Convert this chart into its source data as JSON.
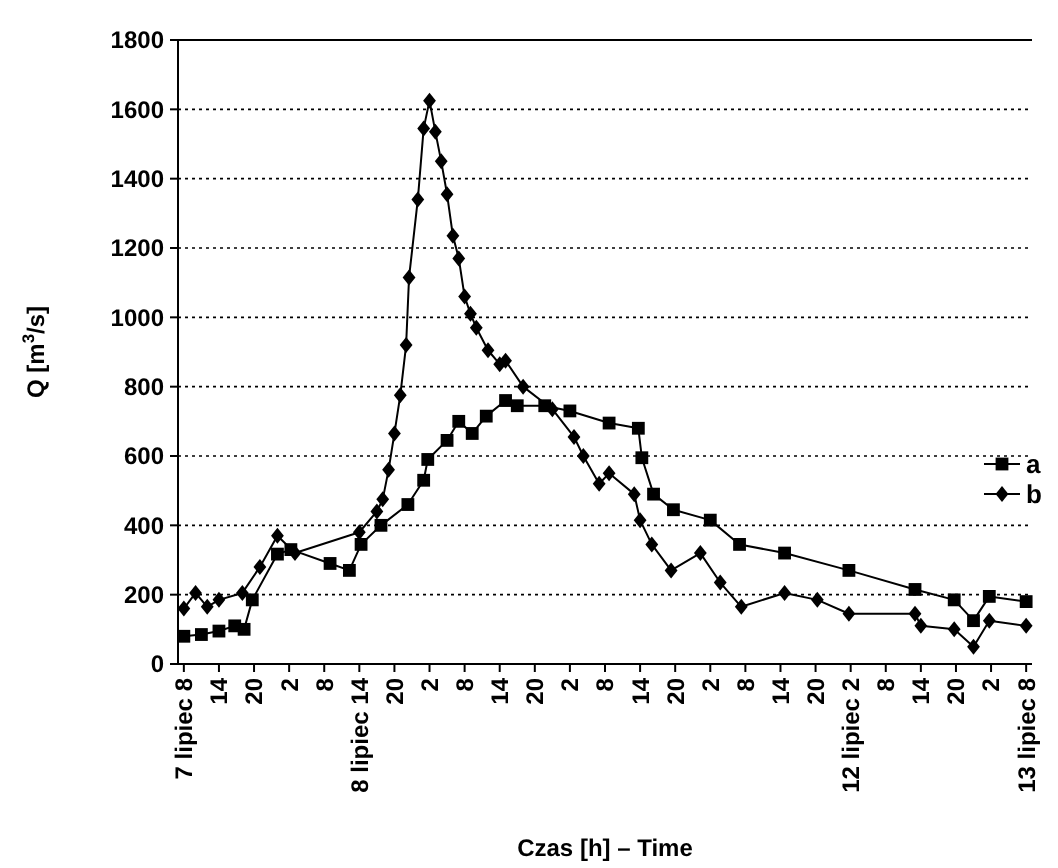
{
  "chart_data": {
    "type": "line",
    "xlabel": "Czas [h] – Time",
    "ylabel": "Q [m$^{3}$/s]",
    "xlim": [
      "--07-07T07:00",
      "--07-13T09:00"
    ],
    "ylim": [
      0,
      1800
    ],
    "yticks": [
      0,
      200,
      400,
      600,
      800,
      1000,
      1200,
      1400,
      1600,
      1800
    ],
    "xticks": [
      {
        "value": "--07-07T08:00",
        "label": "7 lipiec 8"
      },
      {
        "value": "--07-07T14:00",
        "label": "14"
      },
      {
        "value": "--07-07T20:00",
        "label": "20"
      },
      {
        "value": "--07-08T02:00",
        "label": "2"
      },
      {
        "value": "--07-08T08:00",
        "label": "8"
      },
      {
        "value": "--07-08T14:00",
        "label": "8 lipiec 14"
      },
      {
        "value": "--07-08T20:00",
        "label": "20"
      },
      {
        "value": "--07-09T02:00",
        "label": "2"
      },
      {
        "value": "--07-09T08:00",
        "label": "8"
      },
      {
        "value": "--07-09T14:00",
        "label": "14"
      },
      {
        "value": "--07-09T20:00",
        "label": "20"
      },
      {
        "value": "--07-10T02:00",
        "label": "2"
      },
      {
        "value": "--07-10T08:00",
        "label": "8"
      },
      {
        "value": "--07-10T14:00",
        "label": "14"
      },
      {
        "value": "--07-10T20:00",
        "label": "20"
      },
      {
        "value": "--07-11T02:00",
        "label": "2"
      },
      {
        "value": "--07-11T08:00",
        "label": "8"
      },
      {
        "value": "--07-11T14:00",
        "label": "14"
      },
      {
        "value": "--07-11T20:00",
        "label": "20"
      },
      {
        "value": "--07-12T02:00",
        "label": "12 lipiec 2"
      },
      {
        "value": "--07-12T08:00",
        "label": "8"
      },
      {
        "value": "--07-12T14:00",
        "label": "14"
      },
      {
        "value": "--07-12T20:00",
        "label": "20"
      },
      {
        "value": "--07-13T02:00",
        "label": "2"
      },
      {
        "value": "--07-13T08:00",
        "label": "13 lipiec 8"
      }
    ],
    "grid": "y",
    "legend": "right",
    "line_style": "solid",
    "series": [
      {
        "name": "a",
        "color": "#000000",
        "marker": "square",
        "x": [
          "--07-07T08:00",
          "--07-07T11:00",
          "--07-07T14:00",
          "--07-07T16:42",
          "--07-07T18:18",
          "--07-07T19:42",
          "--07-08T00:00",
          "--07-08T02:18",
          "--07-08T09:00",
          "--07-08T12:18",
          "--07-08T14:18",
          "--07-08T17:42",
          "--07-08T22:18",
          "--07-09T01:00",
          "--07-09T01:42",
          "--07-09T05:00",
          "--07-09T07:00",
          "--07-09T09:18",
          "--07-09T11:42",
          "--07-09T15:00",
          "--07-09T17:00",
          "--07-09T21:42",
          "--07-10T02:00",
          "--07-10T08:42",
          "--07-10T13:42",
          "--07-10T14:18",
          "--07-10T16:18",
          "--07-10T19:42",
          "--07-11T02:00",
          "--07-11T07:00",
          "--07-11T14:42",
          "--07-12T01:42",
          "--07-12T13:00",
          "--07-12T19:42",
          "--07-12T23:00",
          "--07-13T01:42",
          "--07-13T08:00"
        ],
        "values": [
          80,
          85,
          95,
          110,
          100,
          185,
          317,
          330,
          290,
          270,
          345,
          400,
          460,
          530,
          590,
          645,
          700,
          665,
          715,
          760,
          745,
          745,
          730,
          695,
          680,
          595,
          490,
          445,
          415,
          345,
          320,
          270,
          215,
          185,
          125,
          195,
          180
        ]
      },
      {
        "name": "b",
        "color": "#000000",
        "marker": "diamond",
        "x": [
          "--07-07T08:00",
          "--07-07T10:00",
          "--07-07T12:00",
          "--07-07T14:00",
          "--07-07T18:00",
          "--07-07T21:00",
          "--07-08T00:00",
          "--07-08T03:00",
          "--07-08T14:00",
          "--07-08T17:00",
          "--07-08T18:00",
          "--07-08T19:00",
          "--07-08T20:00",
          "--07-08T21:00",
          "--07-08T22:00",
          "--07-08T22:30",
          "--07-09T00:00",
          "--07-09T01:00",
          "--07-09T02:00",
          "--07-09T03:00",
          "--07-09T04:00",
          "--07-09T05:00",
          "--07-09T06:00",
          "--07-09T07:00",
          "--07-09T08:00",
          "--07-09T09:00",
          "--07-09T10:00",
          "--07-09T12:00",
          "--07-09T14:00",
          "--07-09T15:00",
          "--07-09T18:00",
          "--07-09T23:00",
          "--07-10T02:42",
          "--07-10T04:18",
          "--07-10T07:00",
          "--07-10T08:42",
          "--07-10T13:00",
          "--07-10T14:00",
          "--07-10T16:00",
          "--07-10T19:18",
          "--07-11T00:18",
          "--07-11T03:42",
          "--07-11T07:18",
          "--07-11T14:42",
          "--07-11T20:18",
          "--07-12T01:42",
          "--07-12T13:00",
          "--07-12T14:00",
          "--07-12T19:42",
          "--07-12T23:00",
          "--07-13T01:42",
          "--07-13T08:00"
        ],
        "values": [
          160,
          205,
          165,
          185,
          205,
          280,
          370,
          320,
          380,
          440,
          475,
          560,
          665,
          775,
          920,
          1115,
          1340,
          1545,
          1625,
          1535,
          1450,
          1355,
          1235,
          1170,
          1060,
          1010,
          970,
          905,
          865,
          875,
          800,
          735,
          655,
          600,
          520,
          550,
          490,
          415,
          345,
          270,
          320,
          235,
          165,
          205,
          185,
          145,
          145,
          110,
          100,
          50,
          125,
          110
        ]
      }
    ]
  }
}
